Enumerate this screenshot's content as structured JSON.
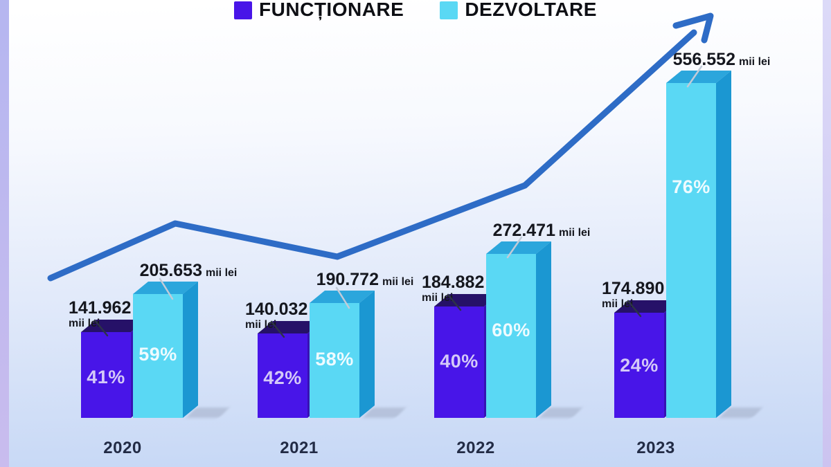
{
  "legend": {
    "items": [
      {
        "id": "functionare",
        "label": "FUNCȚIONARE",
        "color": "#4815e8"
      },
      {
        "id": "dezvoltare",
        "label": "DEZVOLTARE",
        "color": "#5ad8f4"
      }
    ]
  },
  "chart_data": {
    "type": "bar",
    "title": "",
    "categories": [
      "2020",
      "2021",
      "2022",
      "2023"
    ],
    "unit": "mii lei",
    "series": [
      {
        "name": "FUNCȚIONARE",
        "colors": {
          "front": "#4815e8",
          "side": "#3712b4",
          "top": "#261168",
          "percent_text": "#d4c9f8",
          "leader": "#2d3347"
        },
        "points": [
          {
            "value": 141962,
            "label": "141.962",
            "percent": "41%"
          },
          {
            "value": 140032,
            "label": "140.032",
            "percent": "42%"
          },
          {
            "value": 184882,
            "label": "184.882",
            "percent": "40%"
          },
          {
            "value": 174890,
            "label": "174.890",
            "percent": "24%"
          }
        ]
      },
      {
        "name": "DEZVOLTARE",
        "colors": {
          "front": "#5ad8f4",
          "side": "#1b97d2",
          "top": "#2ba6dc",
          "percent_text": "#eefbff",
          "leader": "#c2cbd8"
        },
        "points": [
          {
            "value": 205653,
            "label": "205.653",
            "percent": "59%"
          },
          {
            "value": 190772,
            "label": "190.772",
            "percent": "58%"
          },
          {
            "value": 272471,
            "label": "272.471",
            "percent": "60%"
          },
          {
            "value": 556552,
            "label": "556.552",
            "percent": "76%"
          }
        ]
      }
    ],
    "trend_arrow": {
      "color": "#2e6cc6",
      "direction": "up-right"
    },
    "layout_hints": {
      "grid": false,
      "legend_position": "top",
      "bar_style": "3d",
      "baseline_label_row": true
    }
  }
}
